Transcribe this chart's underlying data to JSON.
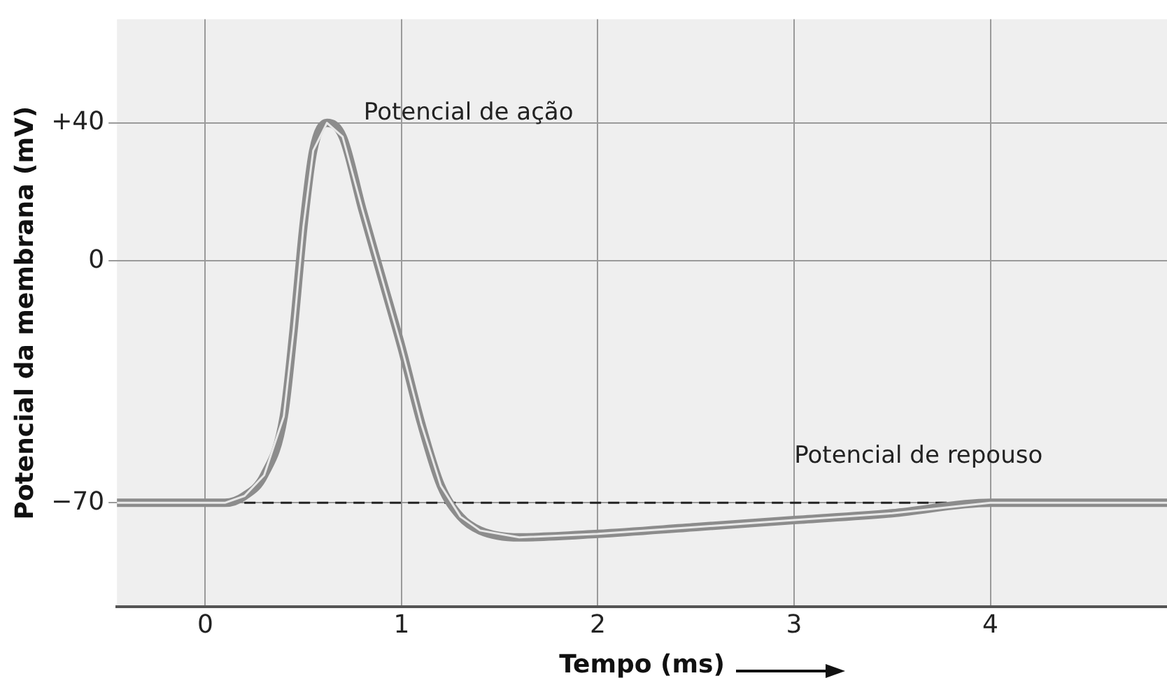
{
  "chart_data": {
    "type": "line",
    "xlabel": "Tempo (ms)",
    "ylabel": "Potencial da membrana (mV)",
    "x": [
      -0.45,
      0,
      0.1,
      0.2,
      0.3,
      0.4,
      0.45,
      0.5,
      0.55,
      0.62,
      0.7,
      0.8,
      0.9,
      1.0,
      1.1,
      1.2,
      1.3,
      1.4,
      1.6,
      2.0,
      2.5,
      3.0,
      3.5,
      4.0,
      4.5,
      4.9
    ],
    "series": [
      {
        "color": "#8c8c8c",
        "values": [
          -70,
          -70,
          -70,
          -68,
          -62,
          -45,
          -20,
          10,
          32,
          40,
          36,
          15,
          -5,
          -25,
          -47,
          -65,
          -74,
          -78,
          -80,
          -79,
          -77,
          -75,
          -73,
          -70,
          -70,
          -70
        ]
      }
    ],
    "xlim": [
      -0.45,
      4.9
    ],
    "xticks": [
      0,
      1,
      2,
      3,
      4
    ],
    "ylim": [
      -100,
      70
    ],
    "yticks": [
      {
        "value": 40,
        "label": "+40"
      },
      0,
      {
        "value": -70,
        "label": "−70"
      }
    ],
    "ref_lines": [
      {
        "axis": "y",
        "value": -70,
        "line_style": "dashed",
        "color": "#222222"
      }
    ],
    "annotations": [
      "Potencial de ação",
      "Potencial de repouso"
    ],
    "grid": true,
    "legend": false,
    "marker": "none",
    "line_style": "solid"
  }
}
